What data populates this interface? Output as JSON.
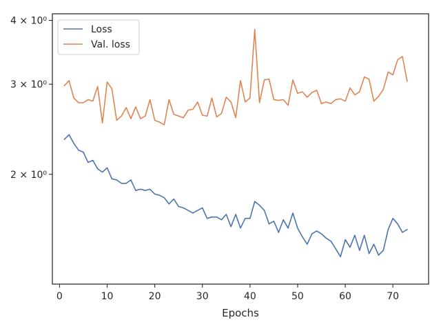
{
  "chart_data": {
    "type": "line",
    "title": "",
    "xlabel": "Epochs",
    "ylabel": "",
    "yscale": "log",
    "xlim": [
      -1.5,
      77.5
    ],
    "ylim": [
      1.22,
      4.12
    ],
    "xticks": [
      0,
      10,
      20,
      30,
      40,
      50,
      60,
      70
    ],
    "xtick_labels": [
      "0",
      "10",
      "20",
      "30",
      "40",
      "50",
      "60",
      "70"
    ],
    "yticks": [
      2,
      3,
      4
    ],
    "ytick_labels": [
      "2 × 10⁰",
      "3 × 10⁰",
      "4 × 10⁰"
    ],
    "grid": false,
    "legend_position": "top-left",
    "series": [
      {
        "name": "Loss",
        "color": "#4c72b0",
        "x": [
          1,
          2,
          3,
          4,
          5,
          6,
          7,
          8,
          9,
          10,
          11,
          12,
          13,
          14,
          15,
          16,
          17,
          18,
          19,
          20,
          21,
          22,
          23,
          24,
          25,
          26,
          27,
          28,
          29,
          30,
          31,
          32,
          33,
          34,
          35,
          36,
          37,
          38,
          39,
          40,
          41,
          42,
          43,
          44,
          45,
          46,
          47,
          48,
          49,
          50,
          51,
          52,
          53,
          54,
          55,
          56,
          57,
          58,
          59,
          60,
          61,
          62,
          63,
          64,
          65,
          66,
          67,
          68,
          69,
          70,
          71,
          72,
          73
        ],
        "values": [
          2.34,
          2.39,
          2.3,
          2.23,
          2.21,
          2.11,
          2.13,
          2.05,
          2.02,
          2.06,
          1.96,
          1.95,
          1.92,
          1.92,
          1.95,
          1.86,
          1.87,
          1.86,
          1.87,
          1.83,
          1.82,
          1.8,
          1.75,
          1.79,
          1.73,
          1.72,
          1.7,
          1.68,
          1.7,
          1.72,
          1.64,
          1.65,
          1.65,
          1.63,
          1.67,
          1.58,
          1.67,
          1.57,
          1.64,
          1.64,
          1.77,
          1.74,
          1.7,
          1.6,
          1.62,
          1.54,
          1.63,
          1.57,
          1.68,
          1.57,
          1.51,
          1.46,
          1.53,
          1.55,
          1.53,
          1.5,
          1.48,
          1.43,
          1.38,
          1.49,
          1.44,
          1.52,
          1.42,
          1.52,
          1.4,
          1.46,
          1.39,
          1.42,
          1.56,
          1.64,
          1.6,
          1.54,
          1.56
        ]
      },
      {
        "name": "Val. loss",
        "color": "#dd8452",
        "x": [
          1,
          2,
          3,
          4,
          5,
          6,
          7,
          8,
          9,
          10,
          11,
          12,
          13,
          14,
          15,
          16,
          17,
          18,
          19,
          20,
          21,
          22,
          23,
          24,
          25,
          26,
          27,
          28,
          29,
          30,
          31,
          32,
          33,
          34,
          35,
          36,
          37,
          38,
          39,
          40,
          41,
          42,
          43,
          44,
          45,
          46,
          47,
          48,
          49,
          50,
          51,
          52,
          53,
          54,
          55,
          56,
          57,
          58,
          59,
          60,
          61,
          62,
          63,
          64,
          65,
          66,
          67,
          68,
          69,
          70,
          71,
          72,
          73
        ],
        "values": [
          2.98,
          3.05,
          2.82,
          2.76,
          2.76,
          2.8,
          2.78,
          2.97,
          2.52,
          3.03,
          2.94,
          2.55,
          2.6,
          2.7,
          2.57,
          2.71,
          2.57,
          2.6,
          2.8,
          2.55,
          2.53,
          2.5,
          2.8,
          2.62,
          2.6,
          2.58,
          2.67,
          2.68,
          2.77,
          2.61,
          2.6,
          2.82,
          2.59,
          2.63,
          2.83,
          2.77,
          2.58,
          3.05,
          2.77,
          2.82,
          3.84,
          2.76,
          3.06,
          3.07,
          2.8,
          2.79,
          2.8,
          2.73,
          3.06,
          2.88,
          2.9,
          2.83,
          2.89,
          2.92,
          2.75,
          2.77,
          2.75,
          2.8,
          2.81,
          2.78,
          2.95,
          2.86,
          2.9,
          3.1,
          3.07,
          2.78,
          2.84,
          2.93,
          3.17,
          3.13,
          3.35,
          3.4,
          3.04
        ]
      }
    ]
  }
}
